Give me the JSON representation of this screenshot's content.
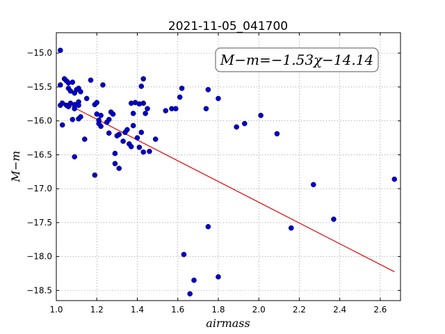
{
  "chart_data": {
    "type": "scatter",
    "title": "2021-11-05_041700",
    "xlabel": "airmass",
    "ylabel": "M−m",
    "xlim": [
      1.0,
      2.7
    ],
    "ylim": [
      -18.65,
      -14.7
    ],
    "y_inverted": true,
    "grid": true,
    "x_ticks": [
      1.0,
      1.2,
      1.4,
      1.6,
      1.8,
      2.0,
      2.2,
      2.4,
      2.6
    ],
    "x_tick_labels": [
      "1.0",
      "1.2",
      "1.4",
      "1.6",
      "1.8",
      "2.0",
      "2.2",
      "2.4",
      "2.6"
    ],
    "y_ticks": [
      -15.0,
      -15.5,
      -16.0,
      -16.5,
      -17.0,
      -17.5,
      -18.0,
      -18.5
    ],
    "y_tick_labels": [
      "−15.0",
      "−15.5",
      "−16.0",
      "−16.5",
      "−17.0",
      "−17.5",
      "−18.0",
      "−18.5"
    ],
    "annotation": "M−m=−1.53χ−14.14",
    "fit": {
      "slope": -1.53,
      "intercept": -14.14,
      "x_range": [
        1.02,
        2.67
      ],
      "color": "#e00000"
    },
    "point_color": "#0000cc",
    "points": [
      [
        1.02,
        -14.96
      ],
      [
        1.02,
        -15.47
      ],
      [
        1.02,
        -15.77
      ],
      [
        1.03,
        -16.06
      ],
      [
        1.03,
        -15.74
      ],
      [
        1.04,
        -15.38
      ],
      [
        1.05,
        -15.41
      ],
      [
        1.05,
        -15.77
      ],
      [
        1.06,
        -15.44
      ],
      [
        1.06,
        -15.52
      ],
      [
        1.06,
        -15.79
      ],
      [
        1.07,
        -15.56
      ],
      [
        1.07,
        -15.74
      ],
      [
        1.08,
        -15.98
      ],
      [
        1.08,
        -15.43
      ],
      [
        1.09,
        -15.59
      ],
      [
        1.09,
        -15.76
      ],
      [
        1.09,
        -15.82
      ],
      [
        1.09,
        -16.53
      ],
      [
        1.1,
        -15.54
      ],
      [
        1.11,
        -15.52
      ],
      [
        1.11,
        -15.72
      ],
      [
        1.11,
        -15.77
      ],
      [
        1.11,
        -15.97
      ],
      [
        1.12,
        -15.57
      ],
      [
        1.12,
        -15.94
      ],
      [
        1.14,
        -16.27
      ],
      [
        1.15,
        -15.67
      ],
      [
        1.17,
        -15.4
      ],
      [
        1.19,
        -15.76
      ],
      [
        1.19,
        -16.8
      ],
      [
        1.2,
        -15.73
      ],
      [
        1.2,
        -15.9
      ],
      [
        1.21,
        -15.99
      ],
      [
        1.21,
        -16.04
      ],
      [
        1.22,
        -16.08
      ],
      [
        1.22,
        -15.92
      ],
      [
        1.23,
        -15.47
      ],
      [
        1.25,
        -16.02
      ],
      [
        1.26,
        -16.18
      ],
      [
        1.26,
        -15.98
      ],
      [
        1.27,
        -15.87
      ],
      [
        1.28,
        -15.9
      ],
      [
        1.29,
        -16.48
      ],
      [
        1.29,
        -16.63
      ],
      [
        1.3,
        -16.22
      ],
      [
        1.31,
        -16.2
      ],
      [
        1.31,
        -16.7
      ],
      [
        1.33,
        -16.3
      ],
      [
        1.34,
        -16.17
      ],
      [
        1.35,
        -16.13
      ],
      [
        1.36,
        -16.34
      ],
      [
        1.37,
        -16.38
      ],
      [
        1.37,
        -15.74
      ],
      [
        1.38,
        -15.89
      ],
      [
        1.38,
        -16.07
      ],
      [
        1.39,
        -15.73
      ],
      [
        1.4,
        -16.25
      ],
      [
        1.41,
        -16.39
      ],
      [
        1.41,
        -15.75
      ],
      [
        1.42,
        -15.49
      ],
      [
        1.42,
        -16.17
      ],
      [
        1.43,
        -15.74
      ],
      [
        1.43,
        -15.38
      ],
      [
        1.43,
        -16.46
      ],
      [
        1.44,
        -15.89
      ],
      [
        1.45,
        -15.82
      ],
      [
        1.46,
        -16.45
      ],
      [
        1.49,
        -16.27
      ],
      [
        1.54,
        -15.85
      ],
      [
        1.57,
        -15.82
      ],
      [
        1.59,
        -15.82
      ],
      [
        1.61,
        -15.65
      ],
      [
        1.62,
        -15.52
      ],
      [
        1.63,
        -17.97
      ],
      [
        1.66,
        -18.55
      ],
      [
        1.68,
        -18.35
      ],
      [
        1.74,
        -15.82
      ],
      [
        1.75,
        -15.54
      ],
      [
        1.75,
        -17.56
      ],
      [
        1.8,
        -15.67
      ],
      [
        1.8,
        -18.3
      ],
      [
        1.89,
        -16.09
      ],
      [
        1.93,
        -16.04
      ],
      [
        2.01,
        -15.92
      ],
      [
        2.09,
        -16.19
      ],
      [
        2.16,
        -17.58
      ],
      [
        2.27,
        -16.94
      ],
      [
        2.37,
        -17.45
      ],
      [
        2.67,
        -16.86
      ]
    ]
  }
}
